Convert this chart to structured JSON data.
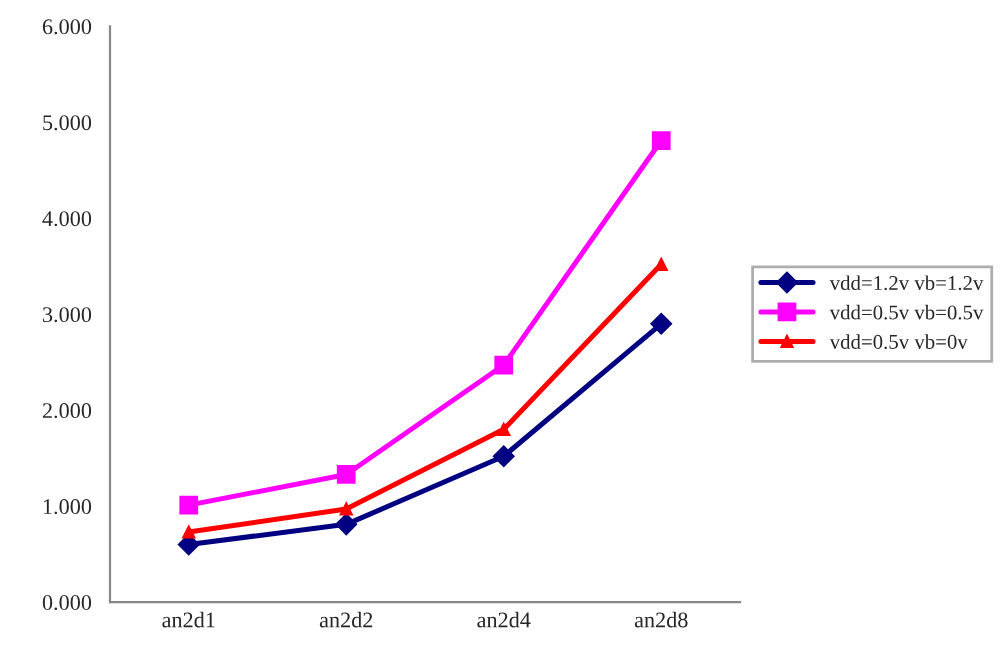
{
  "chart_data": {
    "type": "line",
    "categories": [
      "an2d1",
      "an2d2",
      "an2d4",
      "an2d8"
    ],
    "series": [
      {
        "name": "vdd=1.2v vb=1.2v",
        "color": "#000080",
        "marker": "diamond",
        "values": [
          0.6,
          0.81,
          1.52,
          2.9
        ]
      },
      {
        "name": "vdd=0.5v vb=0.5v",
        "color": "#ff00ff",
        "marker": "square",
        "values": [
          1.01,
          1.33,
          2.47,
          4.81
        ]
      },
      {
        "name": "vdd=0.5v vb=0v",
        "color": "#ff0000",
        "marker": "triangle",
        "values": [
          0.73,
          0.97,
          1.8,
          3.52
        ]
      }
    ],
    "ylim": [
      0,
      6
    ],
    "yticks": [
      {
        "value": 0,
        "label": "0.000"
      },
      {
        "value": 1,
        "label": "1.000"
      },
      {
        "value": 2,
        "label": "2.000"
      },
      {
        "value": 3,
        "label": "3.000"
      },
      {
        "value": 4,
        "label": "4.000"
      },
      {
        "value": 5,
        "label": "5.000"
      },
      {
        "value": 6,
        "label": "6.000"
      }
    ],
    "grid": false,
    "legend": "right"
  }
}
